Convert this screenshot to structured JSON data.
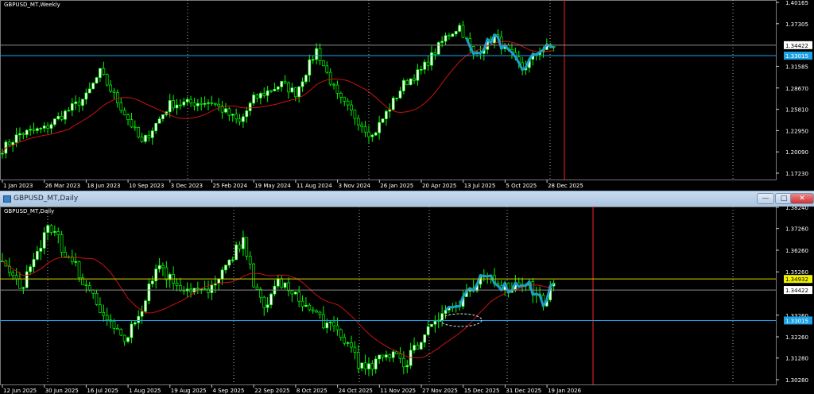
{
  "weekly": {
    "title": "GBPUSD_MT,Weekly",
    "price_ticks": [
      "1.40165",
      "1.37305",
      "1.31585",
      "1.28670",
      "1.25810",
      "1.22950",
      "1.20090",
      "1.17230"
    ],
    "price_range": [
      1.1723,
      1.40165
    ],
    "date_labels": [
      "1 Jan 2023",
      "26 Mar 2023",
      "18 Jun 2023",
      "10 Sep 2023",
      "3 Dec 2023",
      "25 Feb 2024",
      "19 May 2024",
      "11 Aug 2024",
      "3 Nov 2024",
      "26 Jan 2025",
      "20 Apr 2025",
      "13 Jul 2025",
      "5 Oct 2025",
      "28 Dec 2025"
    ],
    "hlines": [
      {
        "price": "1.34422",
        "color": "#8c8c8c",
        "label_bg": "#ffffff",
        "label_fg": "#000000"
      },
      {
        "price": "1.33015",
        "color": "#1aa3e8",
        "label_bg": "#1aa3e8",
        "label_fg": "#ffffff"
      }
    ],
    "price_path": [
      [
        "2023-01-01",
        1.205
      ],
      [
        "2023-02-05",
        1.225
      ],
      [
        "2023-03-26",
        1.232
      ],
      [
        "2023-06-18",
        1.275
      ],
      [
        "2023-07-16",
        1.308
      ],
      [
        "2023-09-10",
        1.245
      ],
      [
        "2023-10-08",
        1.212
      ],
      [
        "2023-12-03",
        1.265
      ],
      [
        "2024-02-25",
        1.268
      ],
      [
        "2024-04-21",
        1.24
      ],
      [
        "2024-05-19",
        1.272
      ],
      [
        "2024-07-14",
        1.292
      ],
      [
        "2024-08-11",
        1.28
      ],
      [
        "2024-09-22",
        1.338
      ],
      [
        "2024-11-03",
        1.275
      ],
      [
        "2025-01-12",
        1.222
      ],
      [
        "2025-03-16",
        1.292
      ],
      [
        "2025-04-20",
        1.31
      ],
      [
        "2025-06-08",
        1.355
      ],
      [
        "2025-07-06",
        1.37
      ],
      [
        "2025-08-03",
        1.33
      ],
      [
        "2025-09-14",
        1.356
      ],
      [
        "2025-11-09",
        1.312
      ],
      [
        "2025-12-14",
        1.338
      ],
      [
        "2026-01-11",
        1.343
      ]
    ]
  },
  "window": {
    "title": "GBPUSD_MT,Daily",
    "min_label": "—",
    "max_label": "□",
    "close_label": "✕"
  },
  "daily": {
    "title": "GBPUSD_MT,Daily",
    "price_ticks": [
      "1.38240",
      "1.37260",
      "1.36260",
      "1.35260",
      "1.33260",
      "1.32260",
      "1.31280",
      "1.30280"
    ],
    "price_range": [
      1.3028,
      1.3824
    ],
    "date_labels": [
      "12 Jun 2025",
      "30 Jun 2025",
      "16 Jul 2025",
      "1 Aug 2025",
      "19 Aug 2025",
      "4 Sep 2025",
      "22 Sep 2025",
      "8 Oct 2025",
      "24 Oct 2025",
      "11 Nov 2025",
      "27 Nov 2025",
      "15 Dec 2025",
      "31 Dec 2025",
      "19 Jan 2026"
    ],
    "hlines": [
      {
        "price": "1.34932",
        "color": "#d8d800",
        "label_bg": "#f0f000",
        "label_fg": "#000000"
      },
      {
        "price": "1.34422",
        "color": "#8c8c8c",
        "label_bg": "#ffffff",
        "label_fg": "#000000"
      },
      {
        "price": "1.33015",
        "color": "#1aa3e8",
        "label_bg": "#1aa3e8",
        "label_fg": "#ffffff"
      }
    ],
    "price_path": [
      [
        "2025-06-12",
        1.356
      ],
      [
        "2025-06-20",
        1.345
      ],
      [
        "2025-07-01",
        1.374
      ],
      [
        "2025-07-10",
        1.357
      ],
      [
        "2025-07-18",
        1.342
      ],
      [
        "2025-07-31",
        1.321
      ],
      [
        "2025-08-05",
        1.331
      ],
      [
        "2025-08-14",
        1.356
      ],
      [
        "2025-08-22",
        1.346
      ],
      [
        "2025-09-03",
        1.343
      ],
      [
        "2025-09-17",
        1.366
      ],
      [
        "2025-09-25",
        1.335
      ],
      [
        "2025-10-01",
        1.348
      ],
      [
        "2025-10-15",
        1.334
      ],
      [
        "2025-10-28",
        1.321
      ],
      [
        "2025-11-05",
        1.307
      ],
      [
        "2025-11-17",
        1.317
      ],
      [
        "2025-11-21",
        1.309
      ],
      [
        "2025-11-28",
        1.323
      ],
      [
        "2025-12-05",
        1.334
      ],
      [
        "2025-12-12",
        1.337
      ],
      [
        "2025-12-24",
        1.351
      ],
      [
        "2026-01-01",
        1.345
      ],
      [
        "2026-01-08",
        1.348
      ],
      [
        "2026-01-16",
        1.338
      ],
      [
        "2026-01-20",
        1.346
      ]
    ]
  },
  "colors": {
    "candle": "#00ff00",
    "ma": "#cc1111",
    "zigzag": "#1a9ec8",
    "axis_text": "#ffffff",
    "grid": "#b0b0b0",
    "period_sep": "#ff2020"
  }
}
